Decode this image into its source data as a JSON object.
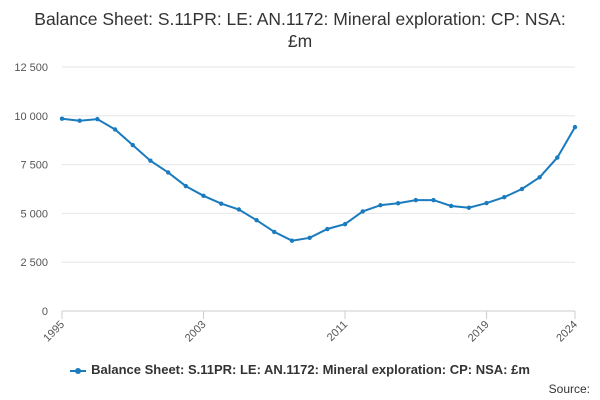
{
  "chart_data": {
    "type": "line",
    "title": "Balance Sheet: S.11PR: LE: AN.1172: Mineral exploration: CP: NSA: £m",
    "xlabel": "",
    "ylabel": "",
    "x": [
      1995,
      1996,
      1997,
      1998,
      1999,
      2000,
      2001,
      2002,
      2003,
      2004,
      2005,
      2006,
      2007,
      2008,
      2009,
      2010,
      2011,
      2012,
      2013,
      2014,
      2015,
      2016,
      2017,
      2018,
      2019,
      2020,
      2021,
      2022,
      2023,
      2024
    ],
    "x_tick_labels": [
      "1995",
      "2003",
      "2011",
      "2019",
      "2024"
    ],
    "y_tick_labels": [
      "0",
      "2 500",
      "5 000",
      "7 500",
      "10 000",
      "12 500"
    ],
    "ylim": [
      0,
      12500
    ],
    "grid": "horizontal",
    "legend_position": "bottom",
    "series": [
      {
        "name": "Balance Sheet: S.11PR: LE: AN.1172: Mineral exploration: CP: NSA: £m",
        "color": "#1b7bbf",
        "values": [
          9850,
          9750,
          9830,
          9300,
          8500,
          7700,
          7100,
          6400,
          5900,
          5500,
          5200,
          4650,
          4050,
          3600,
          3750,
          4200,
          4450,
          5100,
          5420,
          5520,
          5680,
          5680,
          5380,
          5290,
          5530,
          5830,
          6250,
          6850,
          7860,
          9420
        ]
      }
    ]
  },
  "source_label": "Source:"
}
